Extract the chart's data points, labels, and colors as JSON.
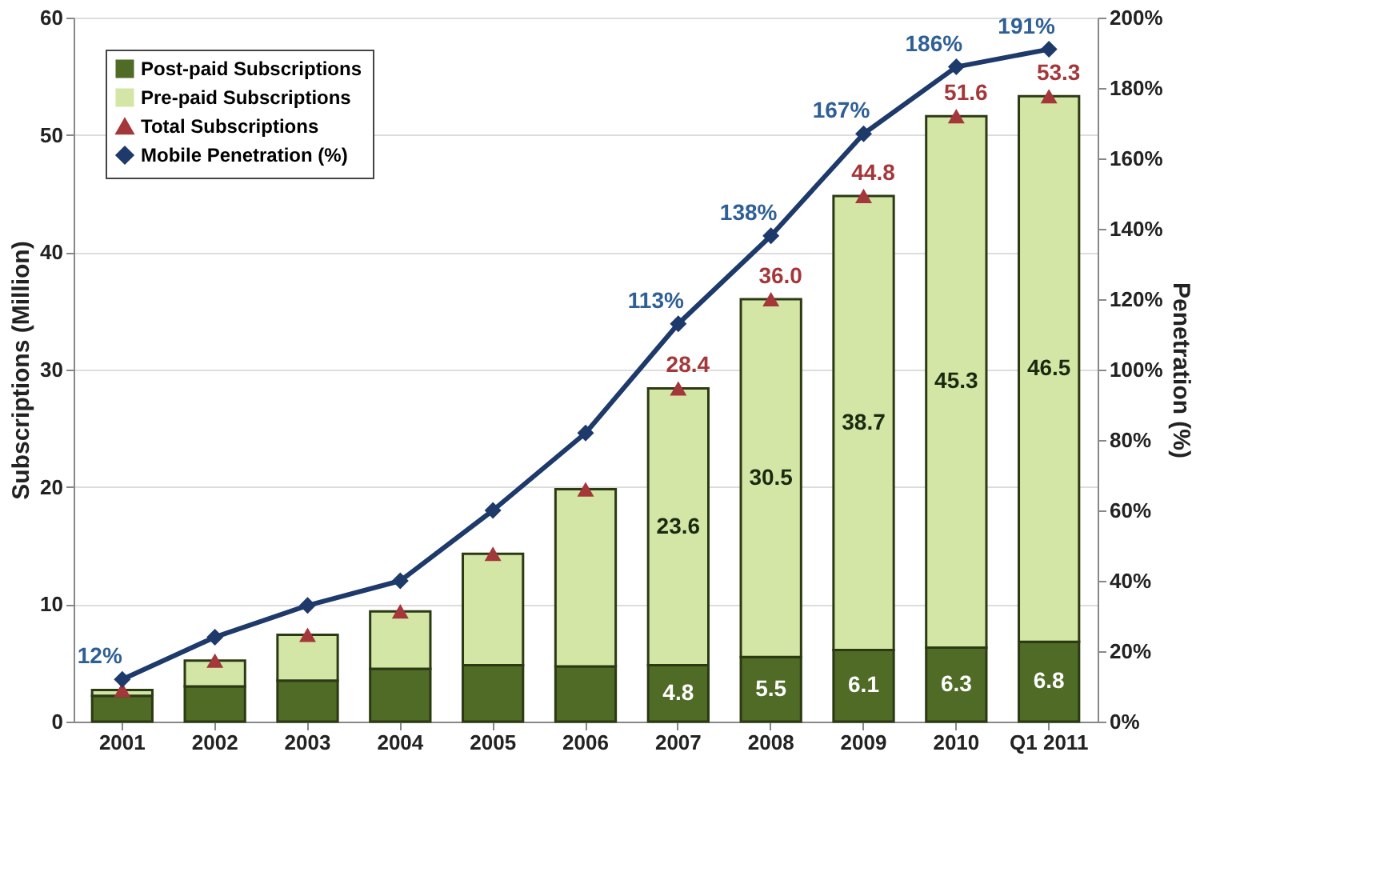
{
  "chart_data": {
    "type": "bar",
    "stacked": true,
    "categories": [
      "2001",
      "2002",
      "2003",
      "2004",
      "2005",
      "2006",
      "2007",
      "2008",
      "2009",
      "2010",
      "Q1 2011"
    ],
    "ylabel": "Subscriptions (Million)",
    "y2label": "Penetration  (%)",
    "ylim": [
      0,
      60
    ],
    "yticks": [
      0,
      10,
      20,
      30,
      40,
      50,
      60
    ],
    "y2lim": [
      0,
      200
    ],
    "y2ticks": [
      {
        "value": 0,
        "label": "0%"
      },
      {
        "value": 20,
        "label": "20%"
      },
      {
        "value": 40,
        "label": "40%"
      },
      {
        "value": 60,
        "label": "60%"
      },
      {
        "value": 80,
        "label": "80%"
      },
      {
        "value": 100,
        "label": "100%"
      },
      {
        "value": 120,
        "label": "120%"
      },
      {
        "value": 140,
        "label": "140%"
      },
      {
        "value": 160,
        "label": "160%"
      },
      {
        "value": 180,
        "label": "180%"
      },
      {
        "value": 200,
        "label": "200%"
      }
    ],
    "grid": "y",
    "legend": "top left",
    "series": [
      {
        "name": "Post-paid Subscriptions",
        "color": "#4f6b26",
        "values": [
          2.2,
          3.0,
          3.5,
          4.5,
          4.8,
          4.7,
          4.8,
          5.5,
          6.1,
          6.3,
          6.8
        ],
        "value_labels": [
          null,
          null,
          null,
          null,
          null,
          null,
          "4.8",
          "5.5",
          "6.1",
          "6.3",
          "6.8"
        ]
      },
      {
        "name": "Pre-paid Subscriptions",
        "color": "#d3e6a6",
        "values": [
          0.5,
          2.2,
          3.9,
          4.9,
          9.5,
          15.1,
          23.6,
          30.5,
          38.7,
          45.3,
          46.5
        ],
        "value_labels": [
          null,
          null,
          null,
          null,
          null,
          null,
          "23.6",
          "30.5",
          "38.7",
          "45.3",
          "46.5"
        ]
      },
      {
        "name": "Total Subscriptions",
        "type": "scatter",
        "marker": "triangle",
        "color": "#a3373a",
        "values": [
          2.7,
          5.2,
          7.4,
          9.4,
          14.3,
          19.8,
          28.4,
          36.0,
          44.8,
          51.6,
          53.3
        ],
        "value_labels": [
          null,
          null,
          null,
          null,
          null,
          null,
          "28.4",
          "36.0",
          "44.8",
          "51.6",
          "53.3"
        ]
      },
      {
        "name": "Mobile Penetration (%)",
        "type": "line",
        "axis": "y2",
        "marker": "diamond",
        "color": "#1d3a6b",
        "values": [
          12,
          24,
          33,
          40,
          60,
          82,
          113,
          138,
          167,
          186,
          191
        ],
        "value_labels": [
          "12%",
          null,
          null,
          null,
          null,
          null,
          "113%",
          "138%",
          "167%",
          "186%",
          "191%"
        ]
      }
    ]
  }
}
